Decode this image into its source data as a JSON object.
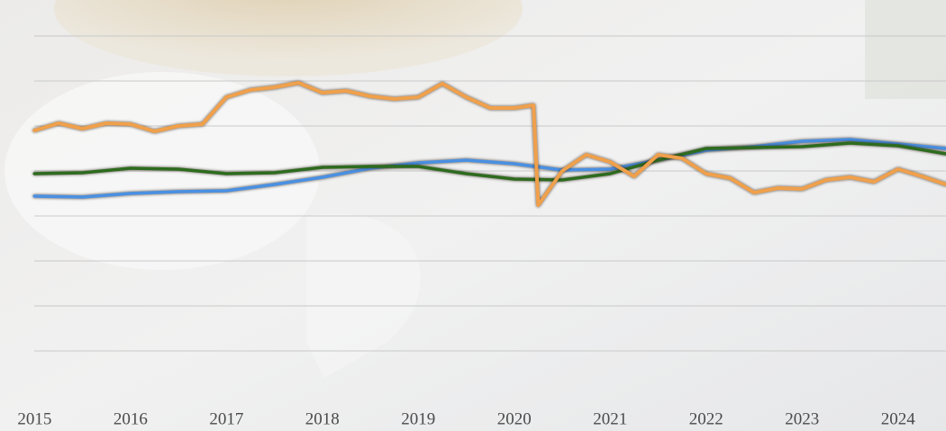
{
  "chart_data": {
    "type": "line",
    "xlim": [
      2014.64,
      2024.5
    ],
    "xticks": [
      2015,
      2016,
      2017,
      2018,
      2019,
      2020,
      2021,
      2022,
      2023,
      2024
    ],
    "ylim": [
      0,
      80
    ],
    "yticks": [
      10,
      20,
      30,
      40,
      50,
      60,
      70,
      80
    ],
    "grid": true,
    "series": [
      {
        "color": "#4a90e2",
        "x": [
          2015,
          2015.5,
          2016,
          2016.5,
          2017,
          2017.5,
          2018,
          2018.5,
          2019,
          2019.5,
          2020,
          2020.5,
          2021,
          2021.5,
          2022,
          2022.5,
          2023,
          2023.5,
          2024,
          2024.5
        ],
        "values": [
          44.4,
          44.2,
          45,
          45.4,
          45.6,
          47,
          48.6,
          50.6,
          51.8,
          52.4,
          51.6,
          50.2,
          50.4,
          52.4,
          54.6,
          55.4,
          56.6,
          57,
          56,
          55
        ]
      },
      {
        "color": "#2e6b1f",
        "x": [
          2015,
          2015.5,
          2016,
          2016.5,
          2017,
          2017.5,
          2018,
          2018.5,
          2019,
          2019.5,
          2020,
          2020.5,
          2021,
          2021.5,
          2022,
          2022.5,
          2023,
          2023.5,
          2024,
          2024.5
        ],
        "values": [
          49.4,
          49.6,
          50.6,
          50.4,
          49.4,
          49.6,
          50.8,
          51,
          51,
          49.4,
          48.2,
          48,
          49.4,
          52.4,
          55,
          55.2,
          55.4,
          56.2,
          55.6,
          53.8
        ]
      },
      {
        "color": "#f0a04b",
        "x": [
          2015,
          2015.25,
          2015.5,
          2015.75,
          2016,
          2016.25,
          2016.5,
          2016.75,
          2017,
          2017.25,
          2017.5,
          2017.75,
          2018,
          2018.25,
          2018.5,
          2018.75,
          2019,
          2019.25,
          2019.5,
          2019.75,
          2020,
          2020.2,
          2020.25,
          2020.5,
          2020.75,
          2021,
          2021.25,
          2021.5,
          2021.75,
          2022,
          2022.25,
          2022.5,
          2022.75,
          2023,
          2023.25,
          2023.5,
          2023.75,
          2024,
          2024.25,
          2024.5
        ],
        "values": [
          59,
          60.6,
          59.4,
          60.6,
          60.4,
          58.8,
          60,
          60.4,
          66.4,
          68,
          68.6,
          69.6,
          67.4,
          67.8,
          66.6,
          66,
          66.4,
          69.4,
          66.4,
          64,
          64,
          64.6,
          42.4,
          50,
          53.6,
          52,
          48.8,
          53.6,
          52.8,
          49.4,
          48.4,
          45.2,
          46.2,
          46,
          48,
          48.6,
          47.6,
          50.4,
          48.8,
          47
        ]
      }
    ]
  }
}
